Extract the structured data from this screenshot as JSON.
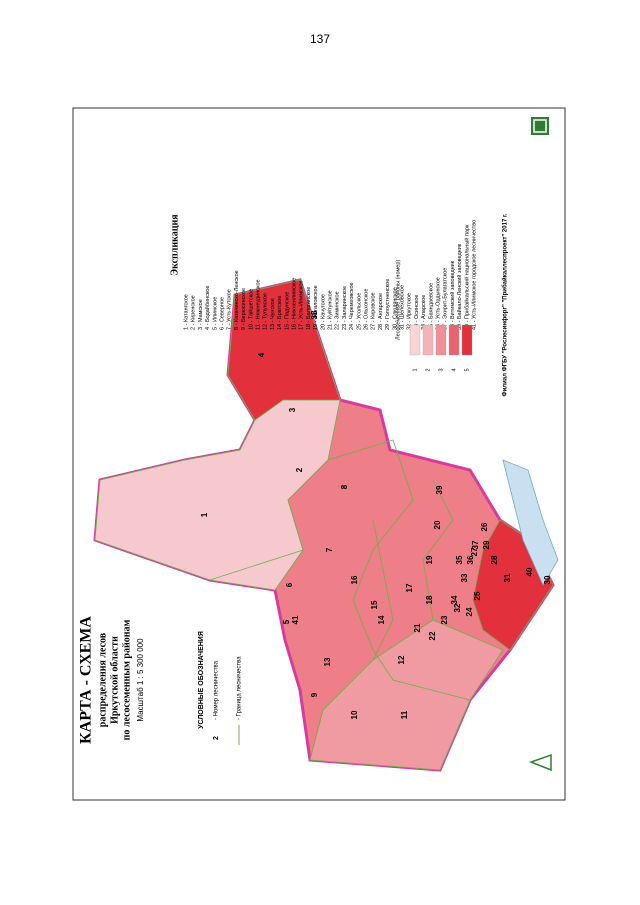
{
  "page_number": "137",
  "map": {
    "title": "КАРТА - СХЕМА",
    "subtitle": [
      "распределения лесов",
      "Иркутской области",
      "по лесосеменным районам"
    ],
    "scale": "Масштаб 1 : 5 300 000",
    "legend": {
      "title": "УСЛОВНЫЕ ОБОЗНАЧЕНИЯ",
      "items": [
        {
          "symbol": "2",
          "text": "- Номер лесничества"
        },
        {
          "text": "- Граница лесничества"
        }
      ]
    },
    "explication": {
      "title": "Экспликация",
      "items": [
        "1 - Катангское",
        "2 - Киренское",
        "3 - Мамское",
        "4 - Бодайбинское",
        "5 - Илимское",
        "6 - Северное",
        "7 - Усть-Кутское",
        "8 - Казачинско-Ленское",
        "9 - Бирюсинское",
        "10 - Тайшетское",
        "11 - Нижнеудинское",
        "12 - Тулунское",
        "13 - Чунское",
        "14 - Братское",
        "15 - Падунское",
        "16 - Нижнеилимское",
        "17 - Усть-Илимское",
        "18 - Балаганское",
        "19 - Жигаловское",
        "20 - Качугское",
        "21 - Куйтунское",
        "22 - Зиминское",
        "23 - Заларинское",
        "24 - Черемховское",
        "25 - Усольское",
        "26 - Ольхонское",
        "27 - Кировское",
        "28 - Ангарское",
        "29 - Голоустненское",
        "30 - Слюдянское",
        "31 - Шелеховское",
        "32 - Иркутское",
        "33 - Осинское",
        "34 - Аларское",
        "35 - Баяндаевское",
        "36 - Усть-Ордынское",
        "37 - Эхирит-Булагатское",
        "38 - Витимский заповедник",
        "39 - Байкало-Ленский заповедник",
        "40 - Прибайкальский национальный парк",
        "41 - Усть-Илимское городское лесничество"
      ]
    },
    "seed_zones": {
      "title": "Лесосеменные районы (номер)",
      "items": [
        {
          "label": "1",
          "color": "#f9d3d7"
        },
        {
          "label": "2",
          "color": "#f5b3b9"
        },
        {
          "label": "3",
          "color": "#ef8f97"
        },
        {
          "label": "4",
          "color": "#ea6470"
        },
        {
          "label": "5",
          "color": "#e2303c"
        }
      ]
    },
    "regions": [
      "1",
      "2",
      "3",
      "4",
      "5",
      "6",
      "7",
      "8",
      "9",
      "10",
      "11",
      "12",
      "13",
      "14",
      "15",
      "16",
      "17",
      "18",
      "19",
      "20",
      "21",
      "22",
      "23",
      "24",
      "25",
      "26",
      "27",
      "28",
      "29",
      "30",
      "31",
      "32",
      "33",
      "34",
      "35",
      "36",
      "37",
      "38",
      "39",
      "40",
      "41"
    ],
    "footer": "Филиал ФГБУ \"Рослесинфорг\" \"Прибайкаллеспроект\" 2017 г."
  }
}
